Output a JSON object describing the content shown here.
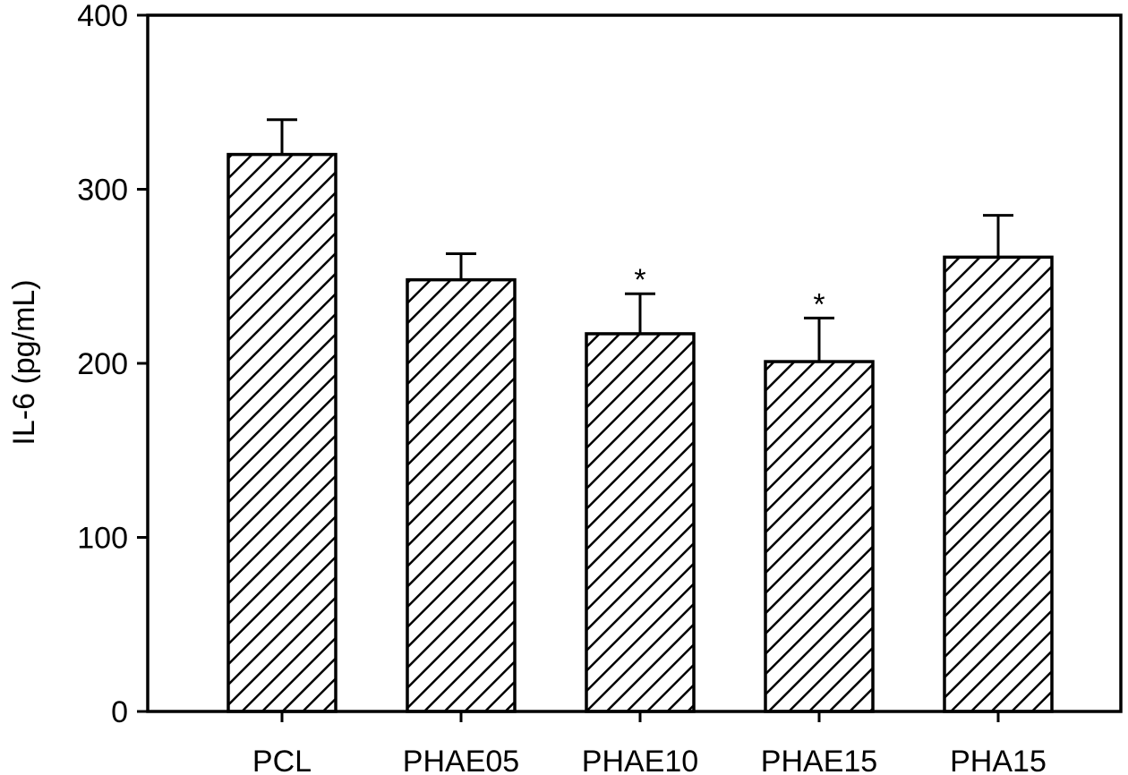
{
  "chart_data": {
    "type": "bar",
    "y_label": "IL-6 (pg/mL)",
    "categories": [
      "PCL",
      "PHAE05",
      "PHAE10",
      "PHAE15",
      "PHA15"
    ],
    "values": [
      320,
      248,
      217,
      201,
      261
    ],
    "errors": [
      20,
      15,
      23,
      25,
      24
    ],
    "annotations": [
      null,
      null,
      "*",
      "*",
      null
    ],
    "color": "#000000",
    "ylim": [
      0,
      400
    ],
    "yticks": [
      0,
      100,
      200,
      300,
      400
    ],
    "grid": false
  }
}
